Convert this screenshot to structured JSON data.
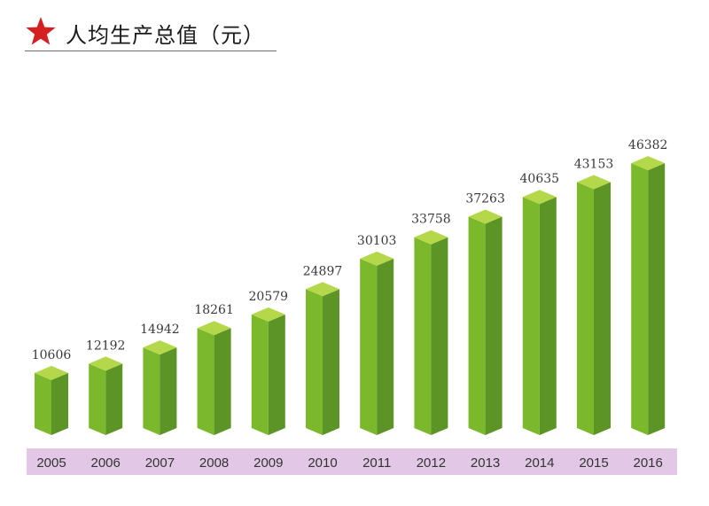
{
  "title": {
    "text": "人均生产总值（元）",
    "star_color": "#d42020",
    "icon": "star-icon"
  },
  "colors": {
    "bar_front": "#7cb82c",
    "bar_side": "#5c9426",
    "bar_top": "#b4d84a",
    "axis_band": "#e2c8e6"
  },
  "chart_data": {
    "type": "bar",
    "title": "人均生产总值（元）",
    "xlabel": "",
    "ylabel": "",
    "categories": [
      "2005",
      "2006",
      "2007",
      "2008",
      "2009",
      "2010",
      "2011",
      "2012",
      "2013",
      "2014",
      "2015",
      "2016"
    ],
    "values": [
      10606,
      12192,
      14942,
      18261,
      20579,
      24897,
      30103,
      33758,
      37263,
      40635,
      43153,
      46382
    ],
    "ylim": [
      0,
      50000
    ],
    "grid": false,
    "legend": "none"
  }
}
